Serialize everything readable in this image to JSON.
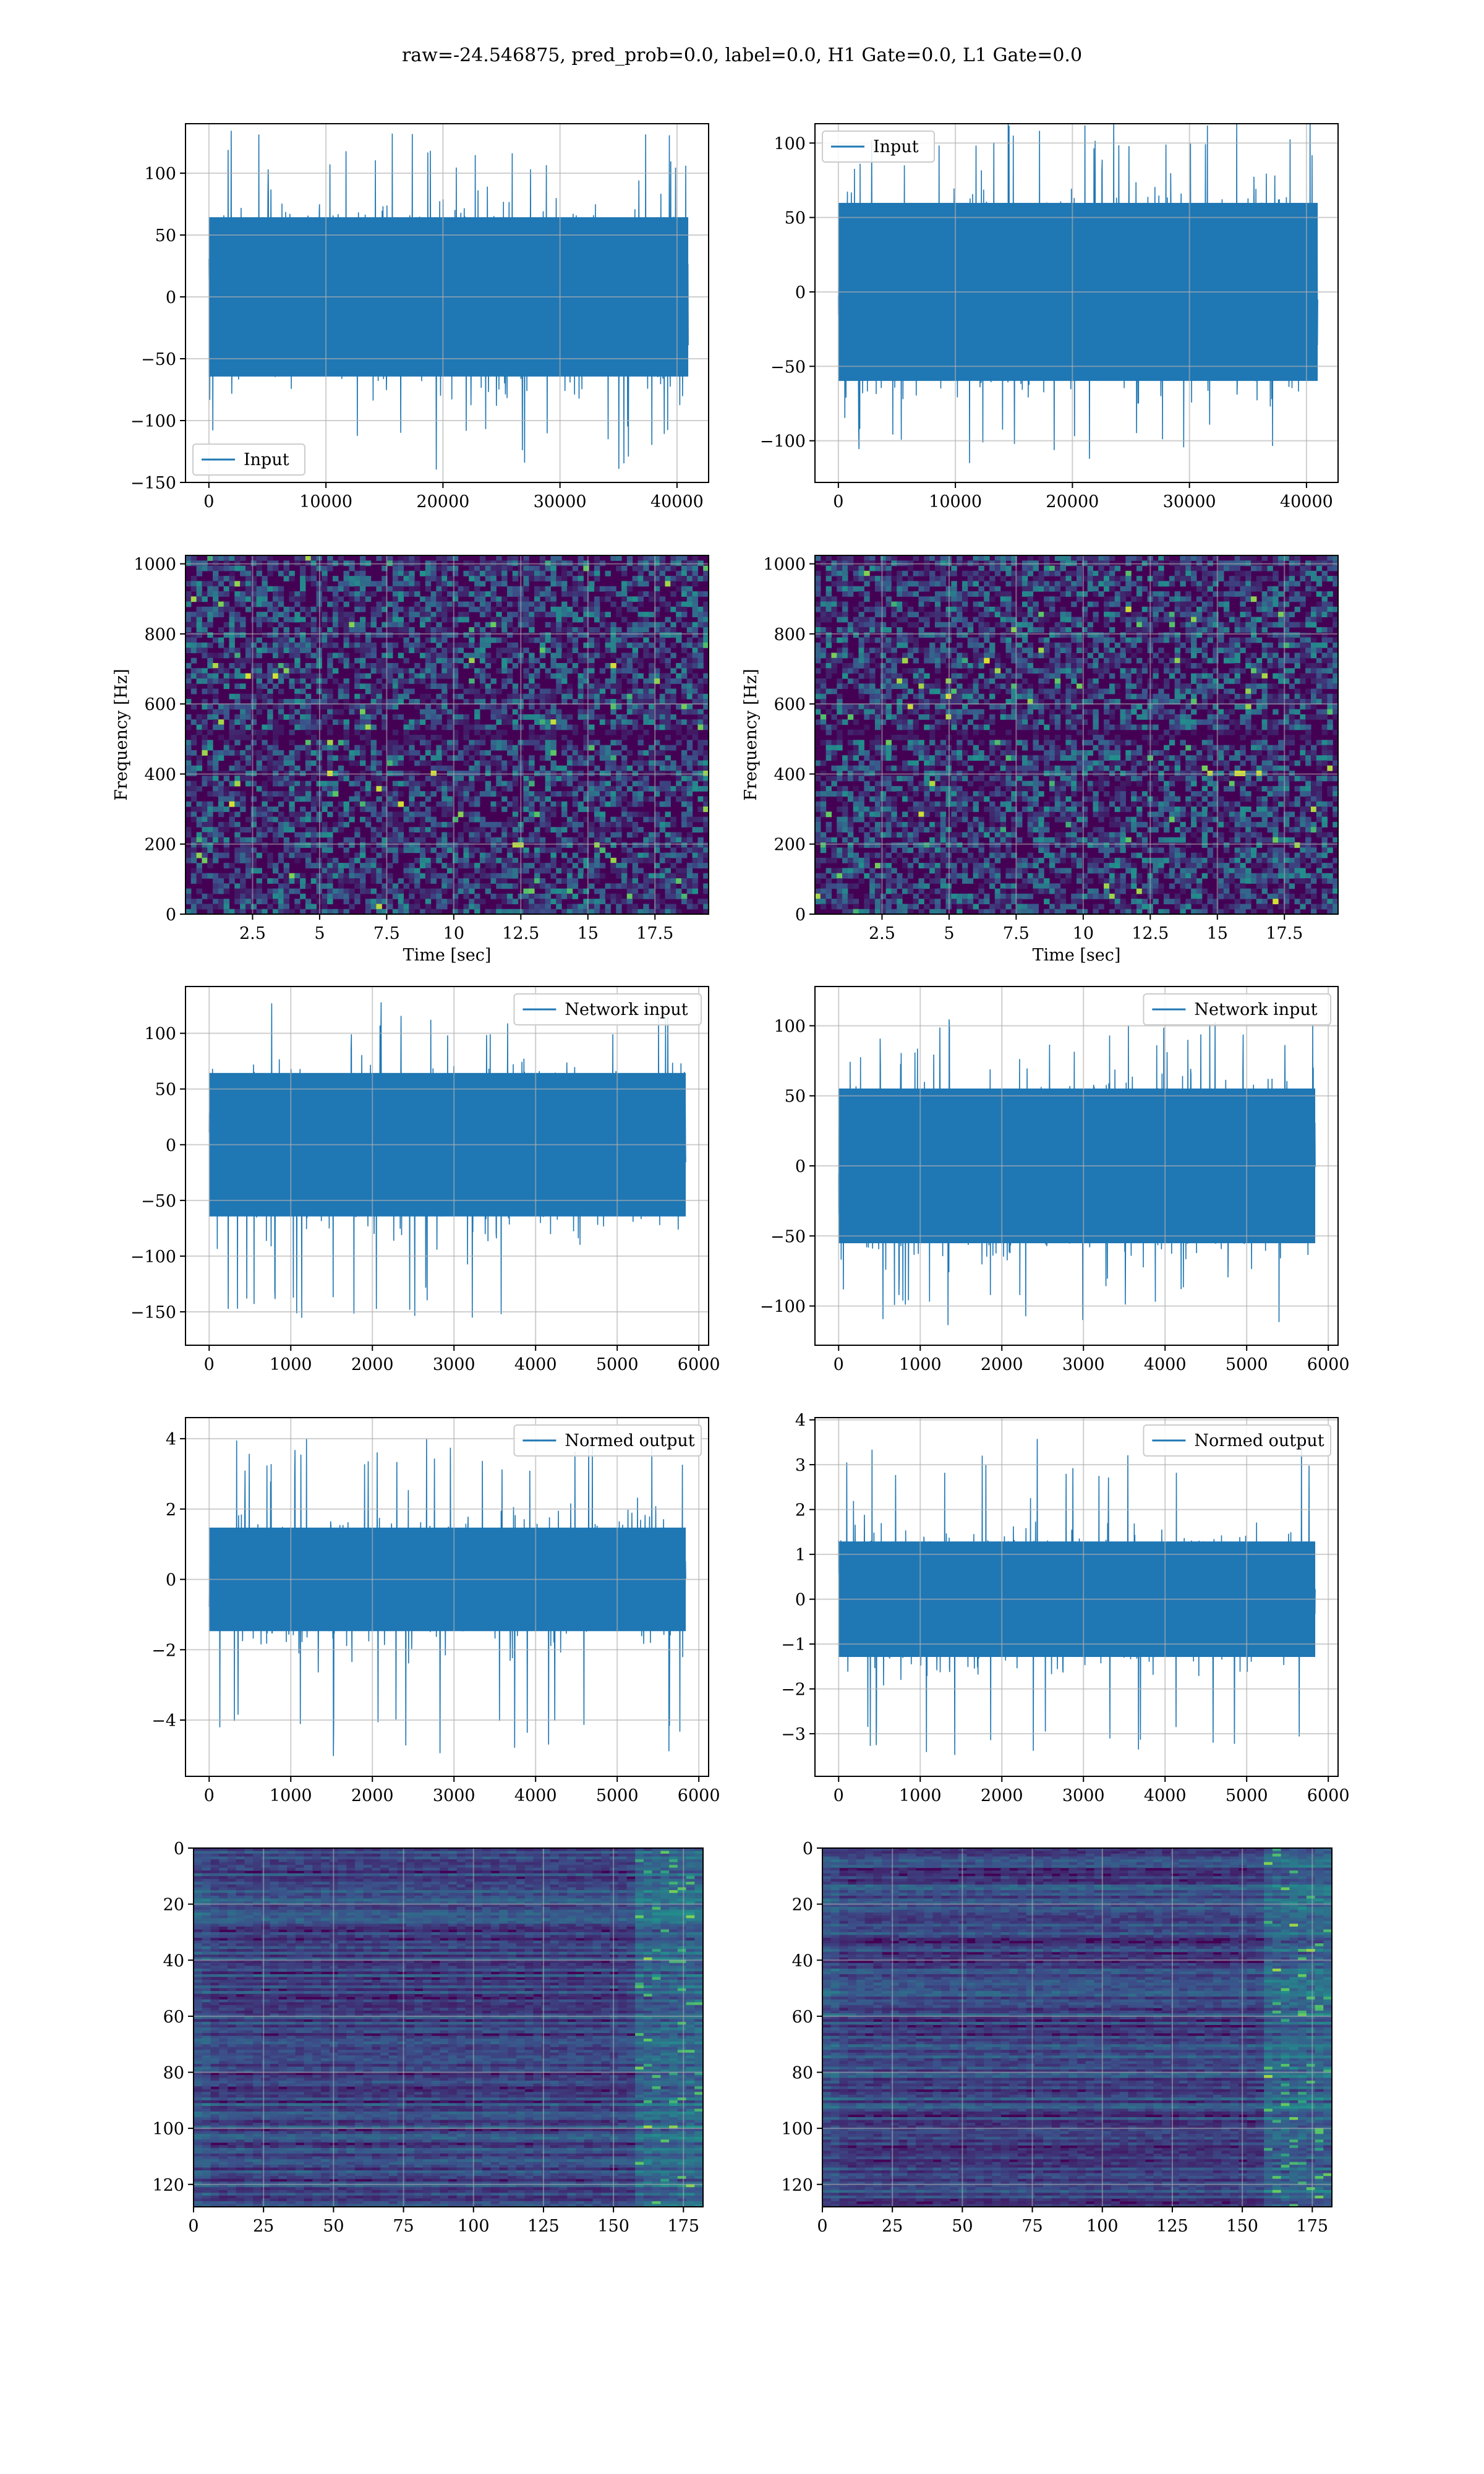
{
  "figure": {
    "title": "raw=-24.546875, pred_prob=0.0, label=0.0, H1 Gate=0.0, L1 Gate=0.0"
  },
  "colors": {
    "line": "#1f77b4",
    "grid": "#b0b0b0",
    "viridis_dark": "#440154",
    "viridis_blue": "#3b528b",
    "viridis_teal": "#21918c",
    "viridis_green": "#5ec962",
    "viridis_yellow": "#fde725"
  },
  "chart_data": [
    {
      "id": "input-left",
      "type": "line",
      "legend": "Input",
      "legend_position": "lower-left",
      "xlim": [
        -2000,
        42700
      ],
      "ylim": [
        -150,
        140
      ],
      "xticks": [
        0,
        10000,
        20000,
        30000,
        40000
      ],
      "yticks": [
        -150,
        -100,
        -50,
        0,
        50,
        100
      ],
      "xlabel": "",
      "ylabel": "",
      "series": [
        {
          "name": "Input",
          "x_range": [
            0,
            40960
          ],
          "points": 40960,
          "envelope": {
            "typical": [
              -70,
              70
            ],
            "peak": [
              -140,
              135
            ]
          }
        }
      ],
      "grid": true
    },
    {
      "id": "input-right",
      "type": "line",
      "legend": "Input",
      "legend_position": "top-left",
      "xlim": [
        -2000,
        42700
      ],
      "ylim": [
        -128,
        113
      ],
      "xticks": [
        0,
        10000,
        20000,
        30000,
        40000
      ],
      "yticks": [
        -100,
        -50,
        0,
        50,
        100
      ],
      "xlabel": "",
      "ylabel": "",
      "series": [
        {
          "name": "Input",
          "x_range": [
            0,
            40960
          ],
          "points": 40960,
          "envelope": {
            "typical": [
              -65,
              65
            ],
            "peak": [
              -118,
              118
            ]
          }
        }
      ],
      "grid": true
    },
    {
      "id": "spectrogram-left",
      "type": "heatmap",
      "xlabel": "Time [sec]",
      "ylabel": "Frequency [Hz]",
      "xlim": [
        0,
        19.5
      ],
      "ylim": [
        0,
        1024
      ],
      "xticks": [
        2.5,
        5.0,
        7.5,
        10.0,
        12.5,
        15.0,
        17.5
      ],
      "yticks": [
        0,
        200,
        400,
        600,
        800,
        1000
      ],
      "colormap": "viridis",
      "grid": true
    },
    {
      "id": "spectrogram-right",
      "type": "heatmap",
      "xlabel": "Time [sec]",
      "ylabel": "Frequency [Hz]",
      "xlim": [
        0,
        19.5
      ],
      "ylim": [
        0,
        1024
      ],
      "xticks": [
        2.5,
        5.0,
        7.5,
        10.0,
        12.5,
        15.0,
        17.5
      ],
      "yticks": [
        0,
        200,
        400,
        600,
        800,
        1000
      ],
      "colormap": "viridis",
      "grid": true
    },
    {
      "id": "network-input-left",
      "type": "line",
      "legend": "Network input",
      "legend_position": "top-right",
      "xlim": [
        -290,
        6120
      ],
      "ylim": [
        -180,
        142
      ],
      "xticks": [
        0,
        1000,
        2000,
        3000,
        4000,
        5000,
        6000
      ],
      "yticks": [
        -150,
        -100,
        -50,
        0,
        50,
        100
      ],
      "xlabel": "",
      "ylabel": "",
      "series": [
        {
          "name": "Network input",
          "x_range": [
            0,
            5840
          ],
          "points": 5840,
          "envelope": {
            "typical": [
              -70,
              70
            ],
            "peak": [
              -163,
              128
            ]
          }
        }
      ],
      "grid": true
    },
    {
      "id": "network-input-right",
      "type": "line",
      "legend": "Network input",
      "legend_position": "top-right",
      "xlim": [
        -290,
        6120
      ],
      "ylim": [
        -128,
        128
      ],
      "xticks": [
        0,
        1000,
        2000,
        3000,
        4000,
        5000,
        6000
      ],
      "yticks": [
        -100,
        -50,
        0,
        50,
        100
      ],
      "xlabel": "",
      "ylabel": "",
      "series": [
        {
          "name": "Network input",
          "x_range": [
            0,
            5840
          ],
          "points": 5840,
          "envelope": {
            "typical": [
              -60,
              60
            ],
            "peak": [
              -115,
              106
            ]
          }
        }
      ],
      "grid": true
    },
    {
      "id": "normed-output-left",
      "type": "line",
      "legend": "Normed output",
      "legend_position": "top-right",
      "xlim": [
        -290,
        6120
      ],
      "ylim": [
        -5.6,
        4.6
      ],
      "xticks": [
        0,
        1000,
        2000,
        3000,
        4000,
        5000,
        6000
      ],
      "yticks": [
        -4,
        -2,
        0,
        2,
        4
      ],
      "xlabel": "",
      "ylabel": "",
      "series": [
        {
          "name": "Normed output",
          "x_range": [
            0,
            5840
          ],
          "points": 5840,
          "envelope": {
            "typical": [
              -1.6,
              1.6
            ],
            "peak": [
              -5.1,
              4.0
            ]
          }
        }
      ],
      "grid": true
    },
    {
      "id": "normed-output-right",
      "type": "line",
      "legend": "Normed output",
      "legend_position": "top-right",
      "xlim": [
        -290,
        6120
      ],
      "ylim": [
        -3.95,
        4.05
      ],
      "xticks": [
        0,
        1000,
        2000,
        3000,
        4000,
        5000,
        6000
      ],
      "yticks": [
        -3,
        -2,
        -1,
        0,
        1,
        2,
        3,
        4
      ],
      "xlabel": "",
      "ylabel": "",
      "series": [
        {
          "name": "Normed output",
          "x_range": [
            0,
            5840
          ],
          "points": 5840,
          "envelope": {
            "typical": [
              -1.4,
              1.4
            ],
            "peak": [
              -3.6,
              3.6
            ]
          }
        }
      ],
      "grid": true
    },
    {
      "id": "feature-map-left",
      "type": "heatmap",
      "xlabel": "",
      "ylabel": "",
      "xlim": [
        0,
        182
      ],
      "ylim": [
        128,
        0
      ],
      "xticks": [
        0,
        25,
        50,
        75,
        100,
        125,
        150,
        175
      ],
      "yticks": [
        0,
        20,
        40,
        60,
        80,
        100,
        120
      ],
      "colormap": "viridis",
      "grid": true
    },
    {
      "id": "feature-map-right",
      "type": "heatmap",
      "xlabel": "",
      "ylabel": "",
      "xlim": [
        0,
        182
      ],
      "ylim": [
        128,
        0
      ],
      "xticks": [
        0,
        25,
        50,
        75,
        100,
        125,
        150,
        175
      ],
      "yticks": [
        0,
        20,
        40,
        60,
        80,
        100,
        120
      ],
      "colormap": "viridis",
      "grid": true
    }
  ]
}
